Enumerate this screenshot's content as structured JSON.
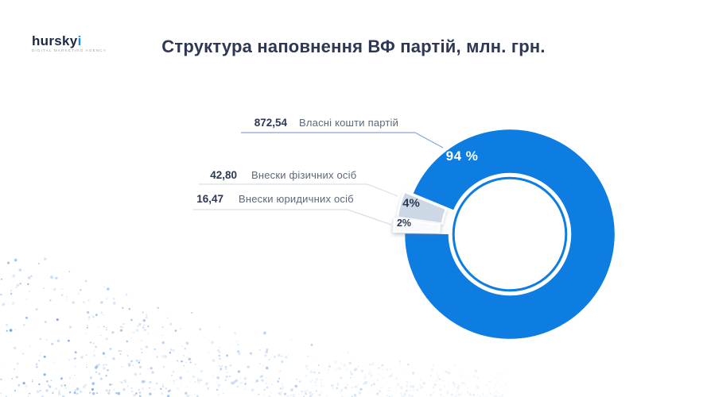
{
  "brand": {
    "name": "hurskyi",
    "name_main": "hursky",
    "name_accent": "i",
    "tagline": "digital marketing agency"
  },
  "title": "Структура наповнення ВФ партій, млн. грн.",
  "chart_data": {
    "type": "pie",
    "subtype": "donut",
    "title": "Структура наповнення ВФ партій, млн. грн.",
    "unit": "млн. грн.",
    "legend_position": "left",
    "labels_on_chart": true,
    "slices": [
      {
        "label": "Власні кошти партій",
        "value": 872.54,
        "display_value": "872,54",
        "percent": 94,
        "percent_label": "94 %",
        "color": "#0E7DE1"
      },
      {
        "label": "Внески фізичних осіб",
        "value": 42.8,
        "display_value": "42,80",
        "percent": 4,
        "percent_label": "4%",
        "color": "#CCD8E5"
      },
      {
        "label": "Внески юридичних осіб",
        "value": 16.47,
        "display_value": "16,47",
        "percent": 2,
        "percent_label": "2%",
        "color": "#F8FAFD"
      }
    ]
  },
  "colors": {
    "accent_blue": "#0E7DE1",
    "title_text": "#2E3853",
    "value_text": "#2E3853",
    "label_text": "#5D6878",
    "slice_gray": "#CCD8E5",
    "slice_white": "#F8FAFD",
    "percent_light": "#FFFFFF",
    "percent_dark": "#2E3853",
    "leader_line_primary": "#7FA8DB",
    "leader_line_secondary": "#DADFE7",
    "dots_blue": "#6EA0DA",
    "logo_navy": "#1C2844",
    "logo_accent": "#1D87E8"
  }
}
